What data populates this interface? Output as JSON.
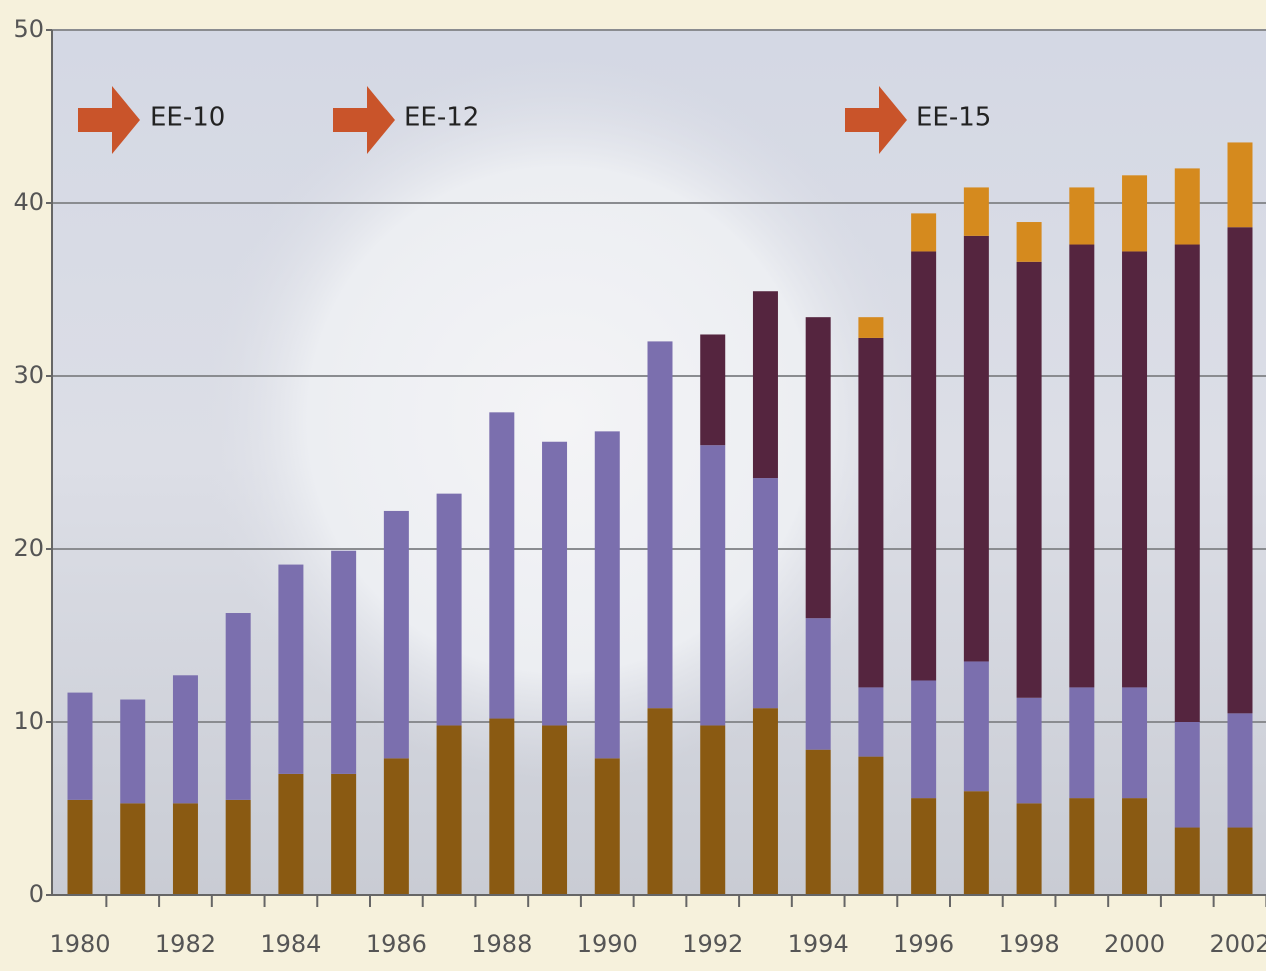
{
  "chart_data": {
    "type": "stacked-bar",
    "annotations": [
      "EE-10",
      "EE-12",
      "EE-15"
    ],
    "categories": [
      "1980",
      null,
      "1982",
      null,
      "1984",
      null,
      "1986",
      null,
      "1988",
      null,
      "1990",
      null,
      "1992",
      null,
      "1994",
      null,
      "1996",
      null,
      "1998",
      null,
      "2000",
      null,
      "2002"
    ],
    "series": [
      {
        "color": "#8a5a12",
        "values": [
          5.5,
          5.3,
          5.3,
          5.5,
          7.0,
          7.0,
          7.9,
          9.8,
          10.2,
          9.8,
          7.9,
          10.8,
          9.8,
          10.8,
          8.4,
          8.0,
          5.6,
          6.0,
          5.3,
          5.6,
          5.6,
          3.9,
          3.9
        ]
      },
      {
        "color": "#7b6fae",
        "values": [
          6.2,
          6.0,
          7.4,
          10.8,
          12.1,
          12.9,
          14.3,
          13.4,
          17.7,
          16.4,
          18.9,
          21.2,
          16.2,
          13.3,
          7.6,
          4.0,
          6.8,
          7.5,
          6.1,
          6.4,
          6.4,
          6.1,
          6.6
        ]
      },
      {
        "color": "#55253f",
        "values": [
          null,
          null,
          null,
          null,
          null,
          null,
          null,
          null,
          null,
          null,
          null,
          null,
          6.4,
          10.8,
          17.4,
          20.2,
          24.8,
          24.6,
          25.2,
          25.6,
          25.2,
          27.6,
          28.1
        ]
      },
      {
        "color": "#d58a1e",
        "values": [
          null,
          null,
          null,
          null,
          null,
          null,
          null,
          null,
          null,
          null,
          null,
          null,
          null,
          null,
          null,
          1.2,
          2.2,
          2.8,
          2.3,
          3.3,
          4.4,
          4.4,
          4.9
        ]
      }
    ],
    "ylim": [
      0,
      50
    ],
    "yticks": [
      0,
      10,
      20,
      30,
      40,
      50
    ],
    "grid": true
  }
}
